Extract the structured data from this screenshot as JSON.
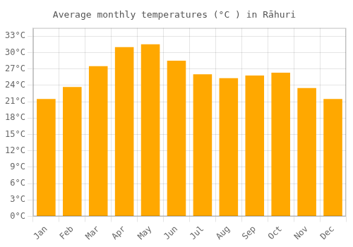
{
  "chart_data": {
    "type": "bar",
    "title": "Average monthly temperatures (°C ) in Rāhuri",
    "categories": [
      "Jan",
      "Feb",
      "Mar",
      "Apr",
      "May",
      "Jun",
      "Jul",
      "Aug",
      "Sep",
      "Oct",
      "Nov",
      "Dec"
    ],
    "values": [
      21.5,
      23.7,
      27.5,
      31.0,
      31.5,
      28.5,
      26.0,
      25.3,
      25.8,
      26.3,
      23.5,
      21.5
    ],
    "color": "#FFA800",
    "ylim": [
      0,
      34.5
    ],
    "yticks": [
      {
        "value": 0,
        "label": "0°C"
      },
      {
        "value": 3,
        "label": "3°C"
      },
      {
        "value": 6,
        "label": "6°C"
      },
      {
        "value": 9,
        "label": "9°C"
      },
      {
        "value": 12,
        "label": "12°C"
      },
      {
        "value": 15,
        "label": "15°C"
      },
      {
        "value": 18,
        "label": "18°C"
      },
      {
        "value": 21,
        "label": "21°C"
      },
      {
        "value": 24,
        "label": "24°C"
      },
      {
        "value": 27,
        "label": "27°C"
      },
      {
        "value": 30,
        "label": "30°C"
      },
      {
        "value": 33,
        "label": "33°C"
      }
    ],
    "grid": true
  }
}
